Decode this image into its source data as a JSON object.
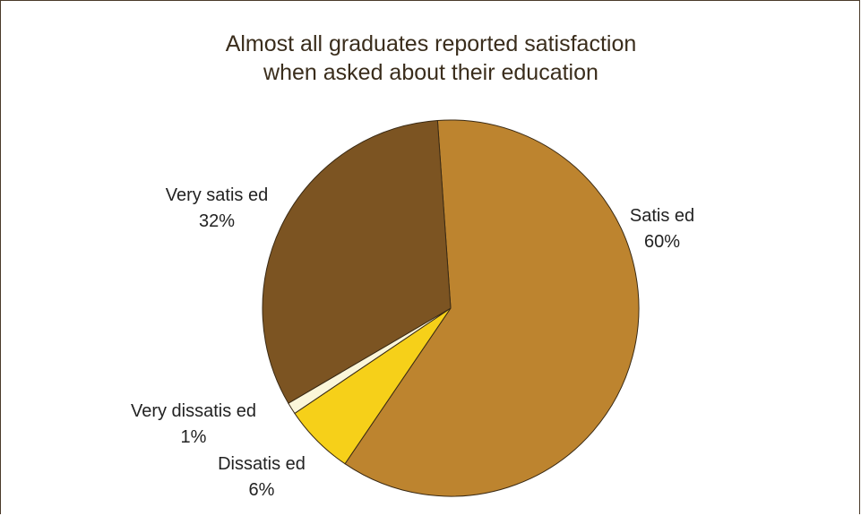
{
  "chart_data": {
    "type": "pie",
    "title_lines": [
      "Almost all graduates reported satisfaction",
      "when asked about their education"
    ],
    "slices": [
      {
        "label": "Satis  ed",
        "value": 60,
        "value_label": "60%",
        "color": "#bd842f"
      },
      {
        "label": "Dissatis  ed",
        "value": 6,
        "value_label": "6%",
        "color": "#f6d019"
      },
      {
        "label": "Very dissatis  ed",
        "value": 1,
        "value_label": "1%",
        "color": "#fbf6d9"
      },
      {
        "label": "Very satis  ed",
        "value": 32,
        "value_label": "32%",
        "color": "#7c5422"
      }
    ]
  }
}
